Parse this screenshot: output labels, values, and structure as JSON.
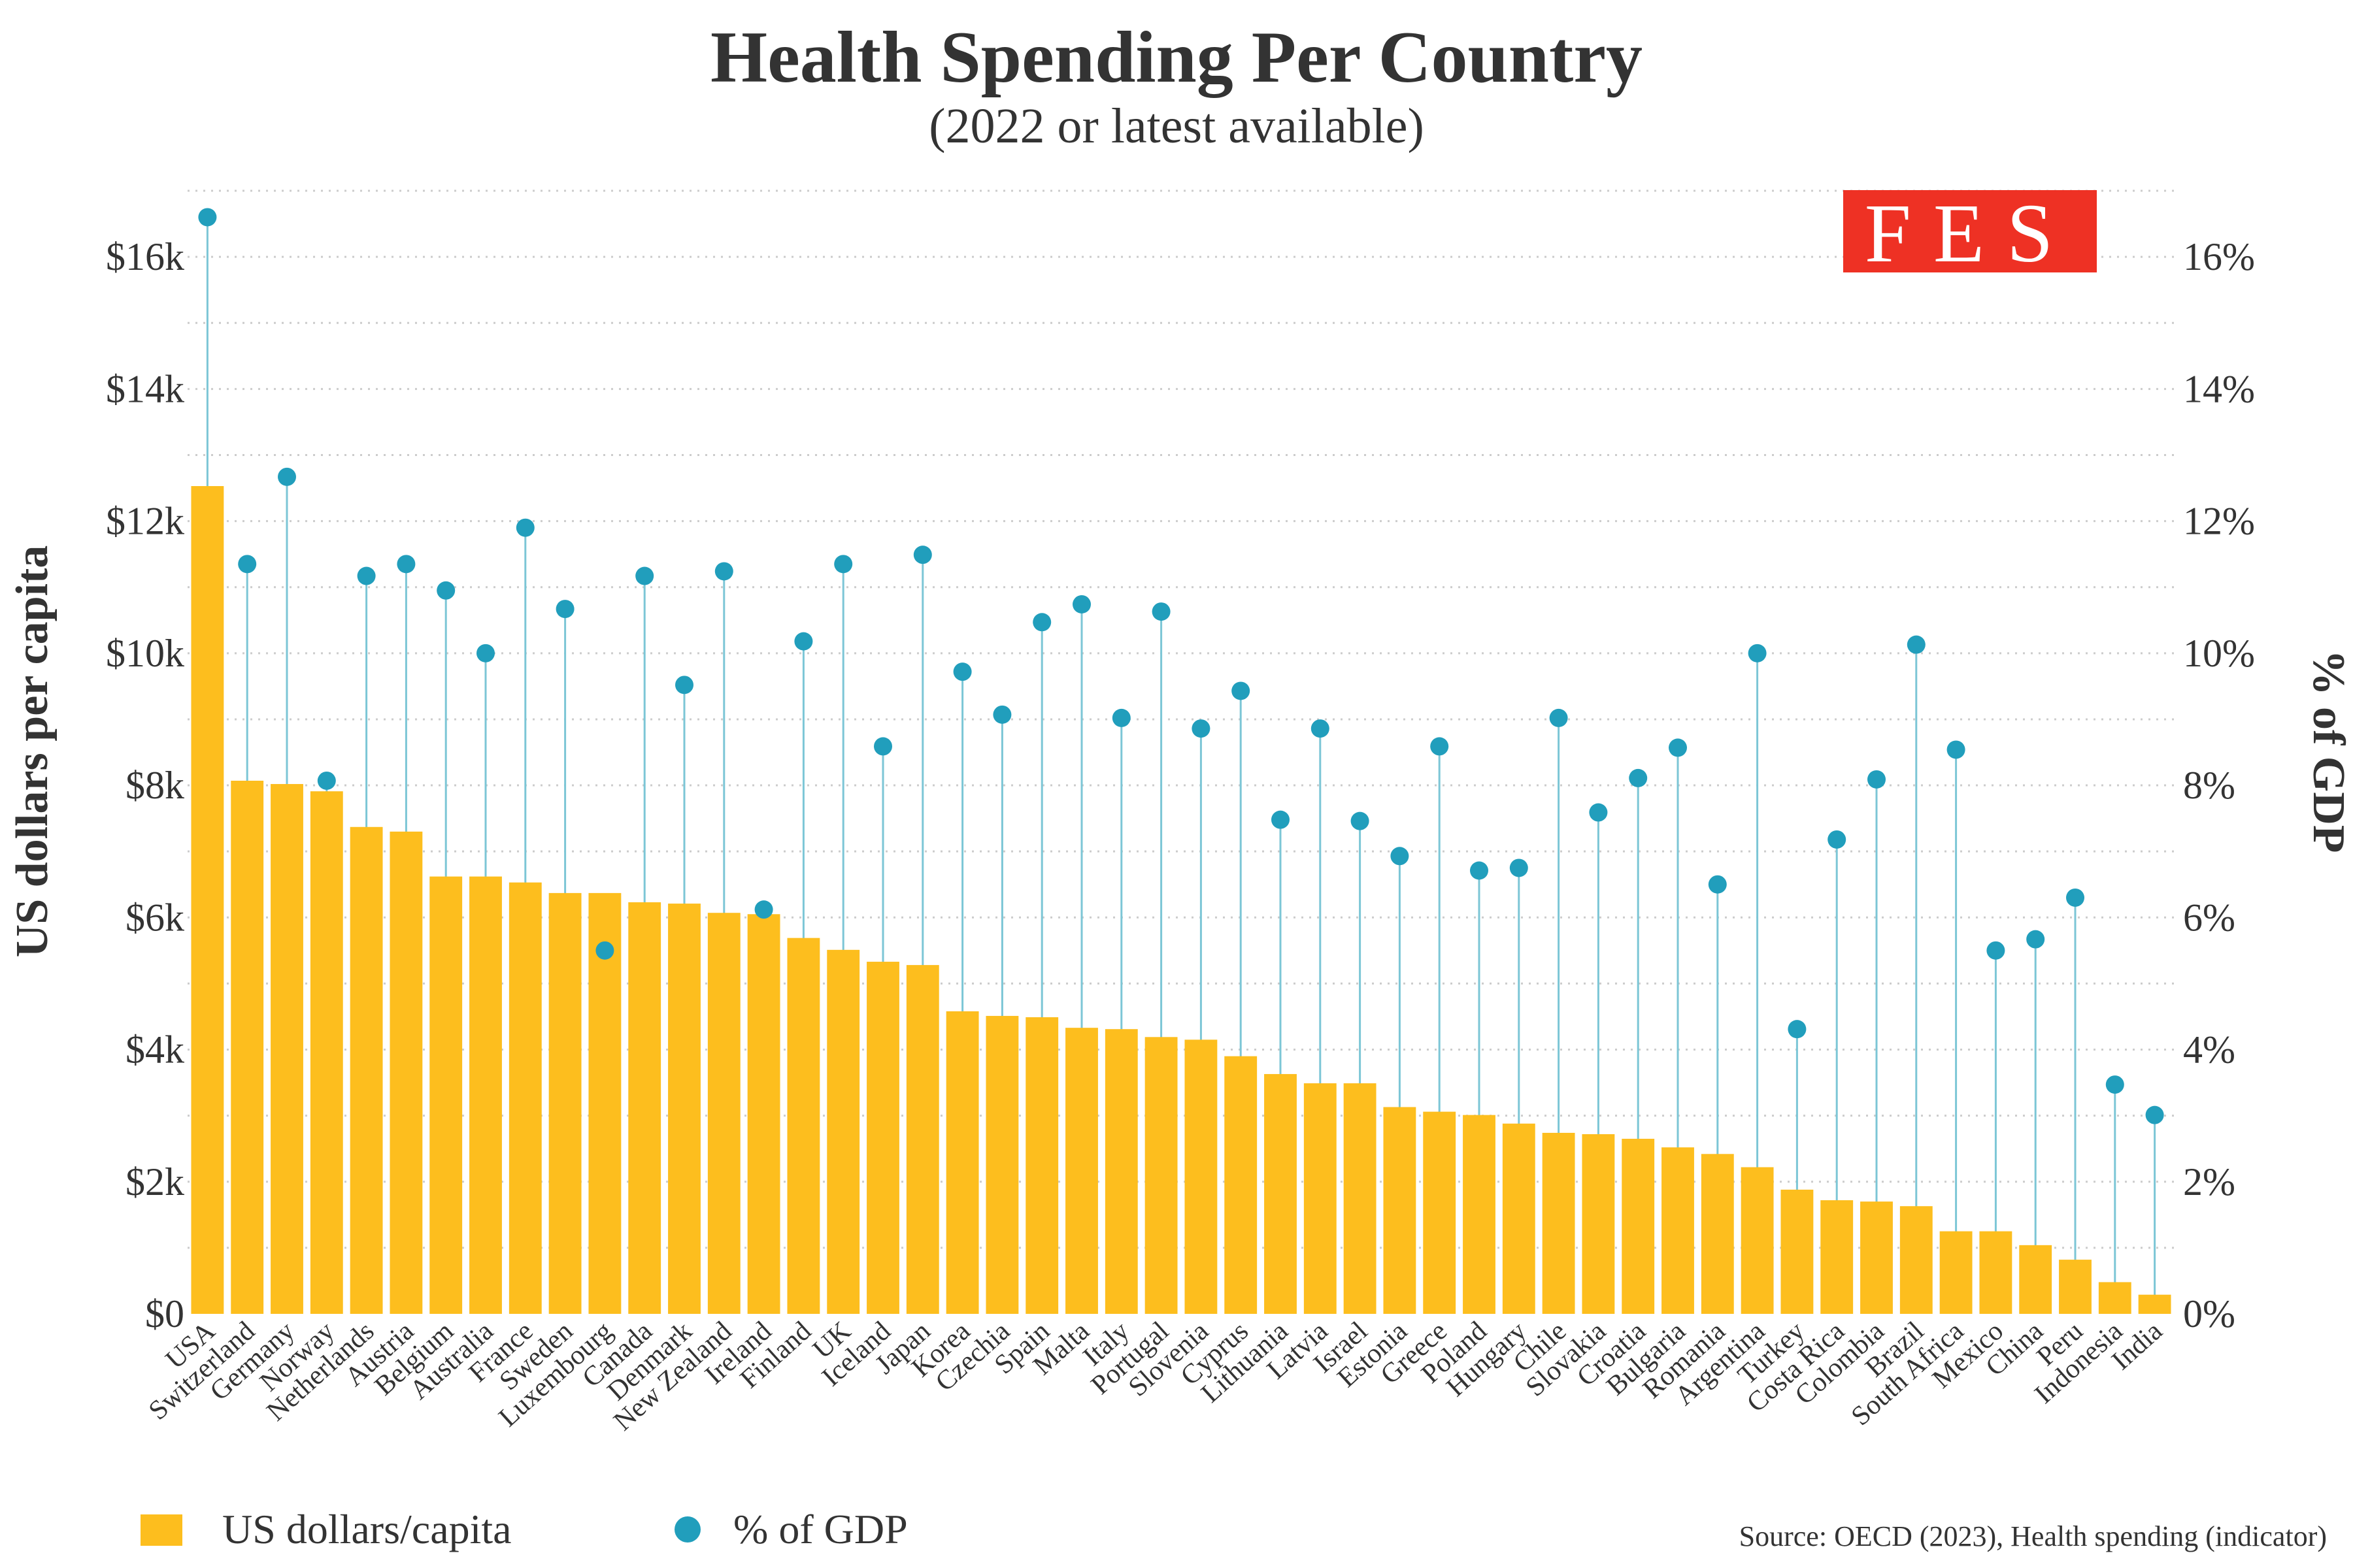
{
  "logo": {
    "text": "FES",
    "color": "#EE3124"
  },
  "chart_data": {
    "type": "bar",
    "title": "Health Spending Per Country",
    "subtitle": "(2022 or latest available)",
    "ylabel": "US dollars per capita",
    "ylabel_right": "% of GDP",
    "ylim": [
      0,
      17000
    ],
    "ylim_right": [
      0,
      17
    ],
    "grid": true,
    "y_ticks": [
      "$0",
      "$2k",
      "$4k",
      "$6k",
      "$8k",
      "$10k",
      "$12k",
      "$14k",
      "$16k"
    ],
    "y_ticks_right": [
      "0%",
      "2%",
      "4%",
      "6%",
      "8%",
      "10%",
      "12%",
      "14%",
      "16%"
    ],
    "legend_position": "bottom-left",
    "categories": [
      "USA",
      "Switzerland",
      "Germany",
      "Norway",
      "Netherlands",
      "Austria",
      "Belgium",
      "Australia",
      "France",
      "Sweden",
      "Luxembourg",
      "Canada",
      "Denmark",
      "New Zealand",
      "Ireland",
      "Finland",
      "UK",
      "Iceland",
      "Japan",
      "Korea",
      "Czechia",
      "Spain",
      "Malta",
      "Italy",
      "Portugal",
      "Slovenia",
      "Cyprus",
      "Lithuania",
      "Latvia",
      "Israel",
      "Estonia",
      "Greece",
      "Poland",
      "Hungary",
      "Chile",
      "Slovakia",
      "Croatia",
      "Bulgaria",
      "Romania",
      "Argentina",
      "Turkey",
      "Costa Rica",
      "Colombia",
      "Brazil",
      "South Africa",
      "Mexico",
      "China",
      "Peru",
      "Indonesia",
      "India"
    ],
    "series": [
      {
        "name": "US dollars/capita",
        "type": "bar",
        "axis": "left",
        "color": "#FDBE1E",
        "values": [
          12530,
          8070,
          8020,
          7910,
          7370,
          7300,
          6620,
          6620,
          6530,
          6370,
          6370,
          6230,
          6210,
          6070,
          6050,
          5690,
          5510,
          5330,
          5280,
          4580,
          4510,
          4490,
          4330,
          4310,
          4190,
          4150,
          3900,
          3630,
          3490,
          3490,
          3130,
          3060,
          3010,
          2880,
          2740,
          2720,
          2650,
          2520,
          2420,
          2220,
          1880,
          1720,
          1700,
          1630,
          1250,
          1250,
          1040,
          820,
          480,
          290
        ]
      },
      {
        "name": "% of GDP",
        "type": "lollipop",
        "axis": "right",
        "color": "#219EBC",
        "values": [
          16.6,
          11.35,
          12.67,
          8.07,
          11.17,
          11.35,
          10.95,
          10.0,
          11.9,
          10.67,
          5.5,
          11.17,
          9.52,
          11.24,
          6.12,
          10.18,
          11.35,
          8.59,
          11.49,
          9.72,
          9.07,
          10.47,
          10.74,
          9.02,
          10.63,
          8.86,
          9.43,
          7.48,
          8.86,
          7.46,
          6.93,
          8.59,
          6.71,
          6.75,
          9.02,
          7.59,
          8.11,
          8.57,
          6.5,
          10.0,
          4.31,
          7.18,
          8.09,
          10.13,
          8.54,
          5.5,
          5.67,
          6.3,
          3.47,
          3.01
        ]
      }
    ],
    "source": "Source: OECD (2023), Health spending (indicator)"
  }
}
